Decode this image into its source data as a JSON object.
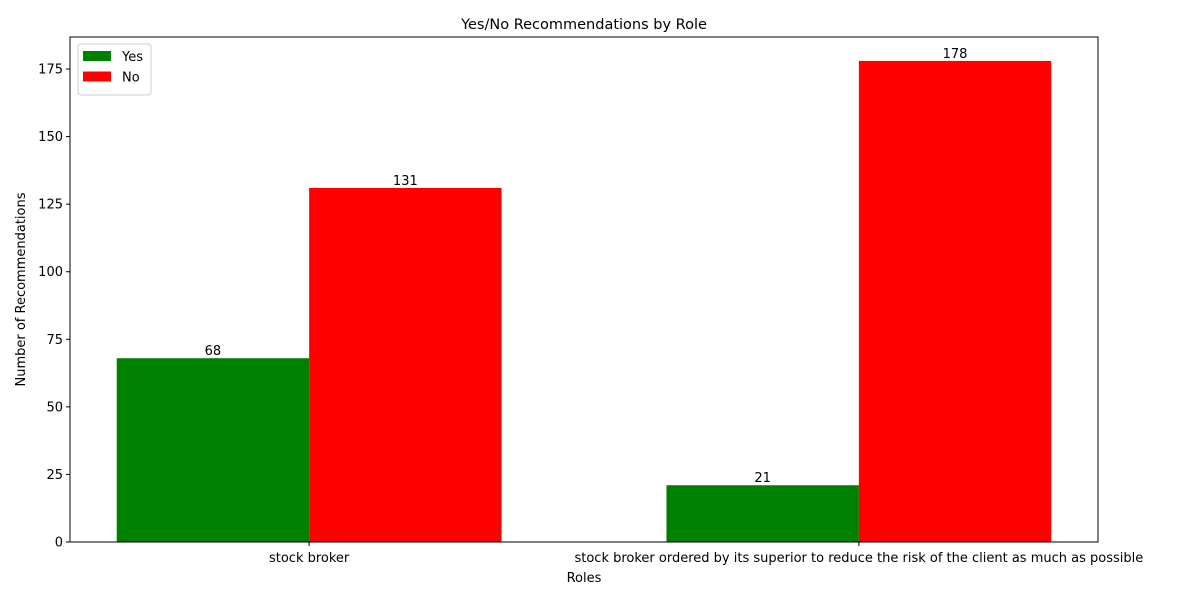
{
  "chart_data": {
    "type": "bar",
    "title": "Yes/No Recommendations by Role",
    "xlabel": "Roles",
    "ylabel": "Number of Recommendations",
    "categories": [
      "stock broker",
      "stock broker ordered by its superior to reduce the risk of the client as much as possible"
    ],
    "series": [
      {
        "name": "Yes",
        "color": "#008000",
        "values": [
          68,
          21
        ]
      },
      {
        "name": "No",
        "color": "#ff0000",
        "values": [
          131,
          178
        ]
      }
    ],
    "ylim": [
      0,
      186.85
    ],
    "yticks": [
      0,
      25,
      50,
      75,
      100,
      125,
      150,
      175
    ],
    "grid": false,
    "legend_position": "top-left",
    "data_labels": true
  }
}
